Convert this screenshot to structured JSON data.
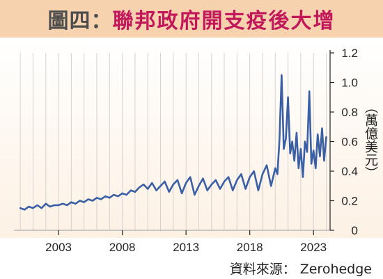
{
  "header": {
    "figure_no": "圖四：",
    "title": "聯邦政府開支疫後大增"
  },
  "source": "資料來源： Zerohedge",
  "colors": {
    "title_bar": "#f6d3ae",
    "title_text": "#c2185b",
    "line": "#3b5fa5",
    "grid": "#d3d3d3"
  },
  "chart_data": {
    "type": "line",
    "title": "聯邦政府開支疫後大增",
    "ylabel": "（萬億美元）",
    "xlabel": "",
    "ylim": [
      0,
      1.2
    ],
    "xlim": [
      1999.5,
      2024.3
    ],
    "y_ticks": [
      "0",
      "0.2",
      "0.4",
      "0.6",
      "0.8",
      "1.0",
      "1.2"
    ],
    "x_ticks": [
      "2003",
      "2008",
      "2013",
      "2018",
      "2023"
    ],
    "grid": "vertical",
    "x": [
      2000.0,
      2000.33,
      2000.67,
      2001.0,
      2001.33,
      2001.67,
      2002.0,
      2002.33,
      2002.67,
      2003.0,
      2003.33,
      2003.67,
      2004.0,
      2004.33,
      2004.67,
      2005.0,
      2005.33,
      2005.67,
      2006.0,
      2006.33,
      2006.67,
      2007.0,
      2007.33,
      2007.67,
      2008.0,
      2008.33,
      2008.67,
      2009.0,
      2009.33,
      2009.67,
      2010.0,
      2010.33,
      2010.67,
      2011.0,
      2011.33,
      2011.67,
      2012.0,
      2012.33,
      2012.67,
      2013.0,
      2013.33,
      2013.67,
      2014.0,
      2014.33,
      2014.67,
      2015.0,
      2015.33,
      2015.67,
      2016.0,
      2016.33,
      2016.67,
      2017.0,
      2017.33,
      2017.67,
      2018.0,
      2018.33,
      2018.67,
      2019.0,
      2019.33,
      2019.67,
      2020.0,
      2020.17,
      2020.33,
      2020.5,
      2020.67,
      2020.83,
      2021.0,
      2021.17,
      2021.33,
      2021.5,
      2021.67,
      2021.83,
      2022.0,
      2022.17,
      2022.33,
      2022.5,
      2022.67,
      2022.83,
      2023.0,
      2023.17,
      2023.33,
      2023.5,
      2023.67,
      2023.83,
      2024.0
    ],
    "series": [
      {
        "values": [
          0.15,
          0.14,
          0.16,
          0.15,
          0.17,
          0.15,
          0.18,
          0.16,
          0.17,
          0.17,
          0.18,
          0.17,
          0.19,
          0.18,
          0.2,
          0.19,
          0.21,
          0.2,
          0.22,
          0.21,
          0.23,
          0.22,
          0.24,
          0.23,
          0.25,
          0.24,
          0.27,
          0.26,
          0.29,
          0.31,
          0.28,
          0.32,
          0.27,
          0.3,
          0.33,
          0.26,
          0.31,
          0.34,
          0.25,
          0.32,
          0.36,
          0.24,
          0.3,
          0.35,
          0.27,
          0.31,
          0.34,
          0.28,
          0.33,
          0.36,
          0.27,
          0.34,
          0.38,
          0.28,
          0.36,
          0.4,
          0.27,
          0.38,
          0.44,
          0.3,
          0.42,
          0.38,
          0.61,
          1.05,
          0.55,
          0.62,
          0.9,
          0.52,
          0.6,
          0.47,
          0.66,
          0.42,
          0.55,
          0.36,
          0.6,
          0.53,
          0.94,
          0.45,
          0.54,
          0.42,
          0.65,
          0.5,
          0.69,
          0.47,
          0.63
        ]
      }
    ]
  }
}
